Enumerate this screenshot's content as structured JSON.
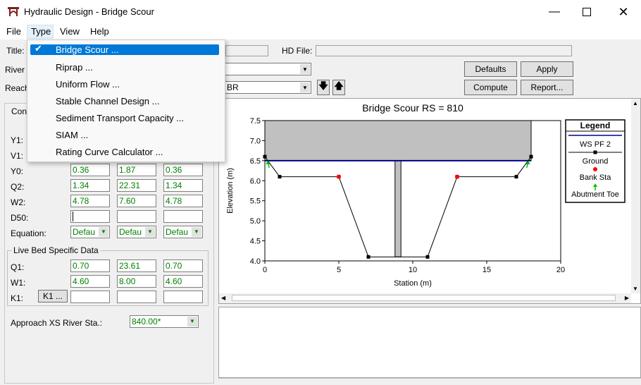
{
  "window": {
    "title": "Hydraulic Design - Bridge Scour"
  },
  "menu": {
    "file": "File",
    "type": "Type",
    "view": "View",
    "help": "Help"
  },
  "type_menu": {
    "items": [
      "Bridge Scour ...",
      "Riprap ...",
      "Uniform Flow ...",
      "Stable Channel Design ...",
      "Sediment Transport Capacity ...",
      "SIAM ...",
      "Rating Curve Calculator ..."
    ],
    "checked": "Bridge Scour ..."
  },
  "header": {
    "title_label": "Title:",
    "hd_file_label": "HD File:",
    "river_label": "River",
    "reach_label": "Reach",
    "reach_value": "BR"
  },
  "buttons": {
    "defaults": "Defaults",
    "apply": "Apply",
    "compute": "Compute",
    "report": "Report...",
    "k1": "K1 ..."
  },
  "left": {
    "tab_label": "Con",
    "rows": [
      {
        "label": "Y1:",
        "values": [
          "",
          "",
          ""
        ]
      },
      {
        "label": "V1:",
        "values": [
          "",
          "",
          ""
        ]
      },
      {
        "label": "Y0:",
        "values": [
          "0.36",
          "1.87",
          "0.36"
        ]
      },
      {
        "label": "Q2:",
        "values": [
          "1.34",
          "22.31",
          "1.34"
        ]
      },
      {
        "label": "W2:",
        "values": [
          "4.78",
          "7.60",
          "4.78"
        ]
      },
      {
        "label": "D50:",
        "values": [
          "",
          "",
          ""
        ]
      }
    ],
    "equation_label": "Equation:",
    "equation_values": [
      "Defau",
      "Defau",
      "Defau"
    ],
    "live_bed": {
      "title": "Live Bed Specific Data",
      "rows": [
        {
          "label": "Q1:",
          "values": [
            "0.70",
            "23.61",
            "0.70"
          ]
        },
        {
          "label": "W1:",
          "values": [
            "4.60",
            "8.00",
            "4.60"
          ]
        }
      ],
      "k1_label": "K1:"
    },
    "approach_label": "Approach XS River Sta.:",
    "approach_value": "840.00*"
  },
  "chart_data": {
    "type": "line",
    "title": "Bridge Scour RS = 810",
    "xlabel": "Station (m)",
    "ylabel": "Elevation (m)",
    "xlim": [
      0,
      20
    ],
    "ylim": [
      4.0,
      7.5
    ],
    "xticks": [
      0,
      5,
      10,
      15,
      20
    ],
    "yticks": [
      4.0,
      4.5,
      5.0,
      5.5,
      6.0,
      6.5,
      7.0,
      7.5
    ],
    "ground": {
      "x": [
        0,
        1,
        5,
        7,
        11,
        13,
        17,
        18
      ],
      "y": [
        6.6,
        6.1,
        6.1,
        4.1,
        4.1,
        6.1,
        6.1,
        6.6
      ]
    },
    "bank_sta": {
      "x": [
        5,
        13
      ],
      "y": [
        6.1,
        6.1
      ]
    },
    "ws_pf2": {
      "x": [
        0,
        18
      ],
      "y": [
        6.5,
        6.5
      ]
    },
    "abutment_toe": {
      "x": [
        0.2,
        17.8
      ],
      "y": [
        6.5,
        6.5
      ]
    },
    "deck": {
      "x": [
        0,
        18
      ],
      "low": 6.5,
      "high": 7.5
    },
    "pier": {
      "x": [
        8.8,
        9.2
      ],
      "low": 4.1,
      "high": 6.5
    },
    "legend": {
      "title": "Legend",
      "entries": [
        "WS PF 2",
        "Ground",
        "Bank Sta",
        "Abutment Toe"
      ]
    },
    "colors": {
      "ws": "#00008b",
      "ground": "#000000",
      "bank": "#ff0000",
      "toe": "#00c000",
      "deck": "#c0c0c0"
    }
  }
}
